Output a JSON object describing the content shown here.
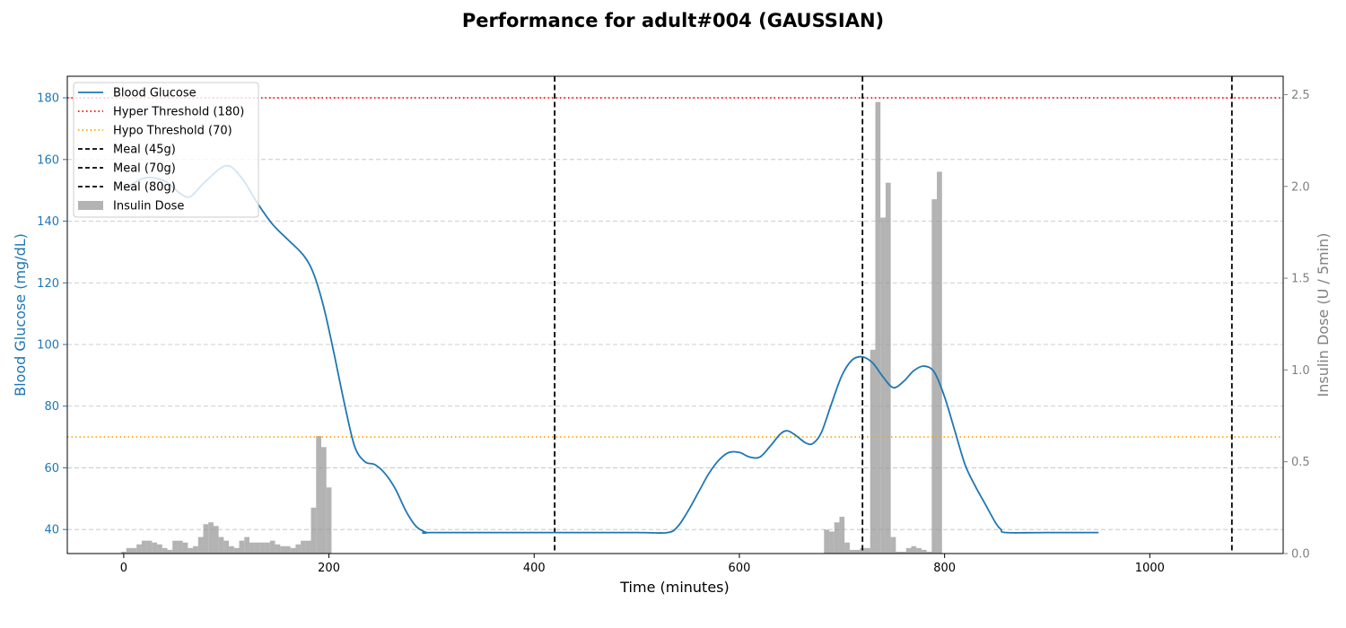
{
  "chart_data": {
    "type": "line",
    "title": "Performance for adult#004 (GAUSSIAN)",
    "xlabel": "Time (minutes)",
    "ylabel_left": "Blood Glucose (mg/dL)",
    "ylabel_right": "Insulin Dose (U / 5min)",
    "xlim": [
      -55,
      1130
    ],
    "ylim_left": [
      32.2,
      187
    ],
    "ylim_right": [
      0,
      2.6
    ],
    "x_ticks": [
      0,
      200,
      400,
      600,
      800,
      1000
    ],
    "y_ticks_left": [
      40,
      60,
      80,
      100,
      120,
      140,
      160,
      180
    ],
    "y_ticks_right": [
      0.0,
      0.5,
      1.0,
      1.5,
      2.0,
      2.5
    ],
    "grid": "horizontal dashed",
    "legend_position": "top-left",
    "colors": {
      "glucose": "#1f77b4",
      "hyper": "#ff0000",
      "hypo": "#ffa500",
      "meal": "#000000",
      "insulin": "#999999",
      "right_axis": "#808080"
    },
    "glucose_series": {
      "name": "Blood Glucose",
      "x": [
        0,
        20,
        40,
        55,
        65,
        80,
        100,
        115,
        130,
        145,
        160,
        175,
        185,
        195,
        205,
        215,
        225,
        235,
        245,
        255,
        265,
        275,
        285,
        295,
        300,
        400,
        500,
        530,
        540,
        550,
        560,
        570,
        580,
        590,
        600,
        610,
        620,
        630,
        640,
        647,
        655,
        665,
        672,
        680,
        690,
        700,
        710,
        720,
        730,
        740,
        750,
        760,
        770,
        780,
        790,
        800,
        810,
        820,
        830,
        840,
        850,
        855,
        860,
        900,
        950
      ],
      "y": [
        150,
        154,
        153,
        149,
        148,
        153,
        158,
        154,
        146,
        139,
        134,
        129,
        123,
        112,
        97,
        81,
        67,
        62,
        61,
        58,
        53,
        46,
        41,
        39,
        39,
        39,
        39,
        39,
        41,
        46,
        52,
        58,
        62.5,
        65,
        65,
        63.5,
        63.5,
        67,
        71,
        72,
        70.5,
        68,
        68,
        71.5,
        81,
        90,
        95,
        96,
        94,
        89.5,
        86,
        88,
        91.5,
        93,
        91,
        83,
        72,
        61,
        54,
        48,
        42,
        40,
        39,
        39,
        39
      ]
    },
    "hyper_threshold": {
      "name": "Hyper Threshold (180)",
      "value": 180
    },
    "hypo_threshold": {
      "name": "Hypo Threshold (70)",
      "value": 70
    },
    "meals": [
      {
        "name": "Meal (45g)",
        "x": 420
      },
      {
        "name": "Meal (70g)",
        "x": 720
      },
      {
        "name": "Meal (80g)",
        "x": 1080
      }
    ],
    "insulin_series": {
      "name": "Insulin Dose",
      "bar_width": 5,
      "x": [
        0,
        5,
        10,
        15,
        20,
        25,
        30,
        35,
        40,
        45,
        50,
        55,
        60,
        65,
        70,
        75,
        80,
        85,
        90,
        95,
        100,
        105,
        110,
        115,
        120,
        125,
        130,
        135,
        140,
        145,
        150,
        155,
        160,
        165,
        170,
        175,
        180,
        185,
        190,
        195,
        200,
        685,
        690,
        695,
        700,
        705,
        710,
        715,
        720,
        725,
        730,
        735,
        740,
        745,
        750,
        755,
        760,
        765,
        770,
        775,
        780,
        785,
        790,
        795
      ],
      "values": [
        0.01,
        0.03,
        0.03,
        0.05,
        0.07,
        0.07,
        0.06,
        0.05,
        0.03,
        0.02,
        0.07,
        0.07,
        0.06,
        0.03,
        0.04,
        0.09,
        0.16,
        0.17,
        0.15,
        0.09,
        0.07,
        0.04,
        0.03,
        0.07,
        0.09,
        0.06,
        0.06,
        0.06,
        0.06,
        0.07,
        0.05,
        0.04,
        0.04,
        0.03,
        0.05,
        0.07,
        0.07,
        0.25,
        0.64,
        0.58,
        0.36,
        0.13,
        0.12,
        0.17,
        0.2,
        0.06,
        0.02,
        0.02,
        0.03,
        0.03,
        1.11,
        2.46,
        1.83,
        2.02,
        0.09,
        0.01,
        0.01,
        0.03,
        0.04,
        0.03,
        0.02,
        0.01,
        1.93,
        2.08
      ]
    },
    "legend": [
      "Blood Glucose",
      "Hyper Threshold (180)",
      "Hypo Threshold (70)",
      "Meal (45g)",
      "Meal (70g)",
      "Meal (80g)",
      "Insulin Dose"
    ]
  }
}
